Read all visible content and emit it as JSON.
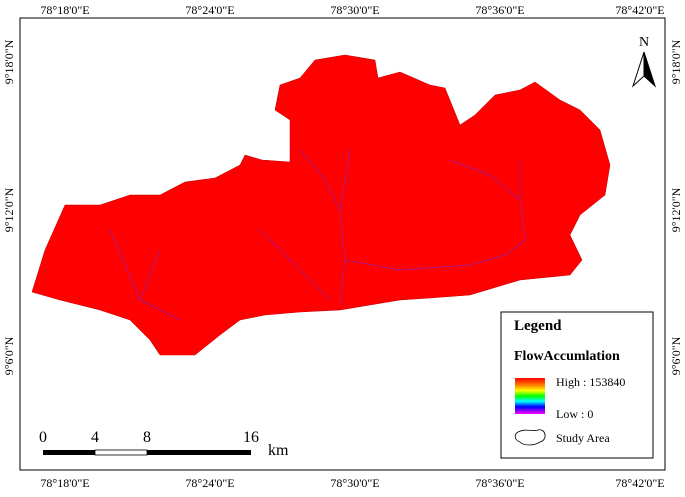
{
  "map": {
    "north": "N",
    "top_labels": [
      "78°18'0\"E",
      "78°24'0\"E",
      "78°30'0\"E",
      "78°36'0\"E",
      "78°42'0\"E"
    ],
    "bottom_labels": [
      "78°18'0\"E",
      "78°24'0\"E",
      "78°30'0\"E",
      "78°36'0\"E",
      "78°42'0\"E"
    ],
    "left_labels": [
      "9°18'0\"N",
      "9°12'0\"N",
      "9°6'0\"N"
    ],
    "right_labels": [
      "9°18'0\"N",
      "9°12'0\"N",
      "9°6'0\"N"
    ],
    "legend": {
      "title": "Legend",
      "layer": "FlowAccumlation",
      "high": "High : 153840",
      "low": "Low : 0",
      "study_area": "Study Area"
    },
    "scale": {
      "labels": [
        "0",
        "4",
        "8",
        "16"
      ],
      "unit": "km"
    }
  }
}
